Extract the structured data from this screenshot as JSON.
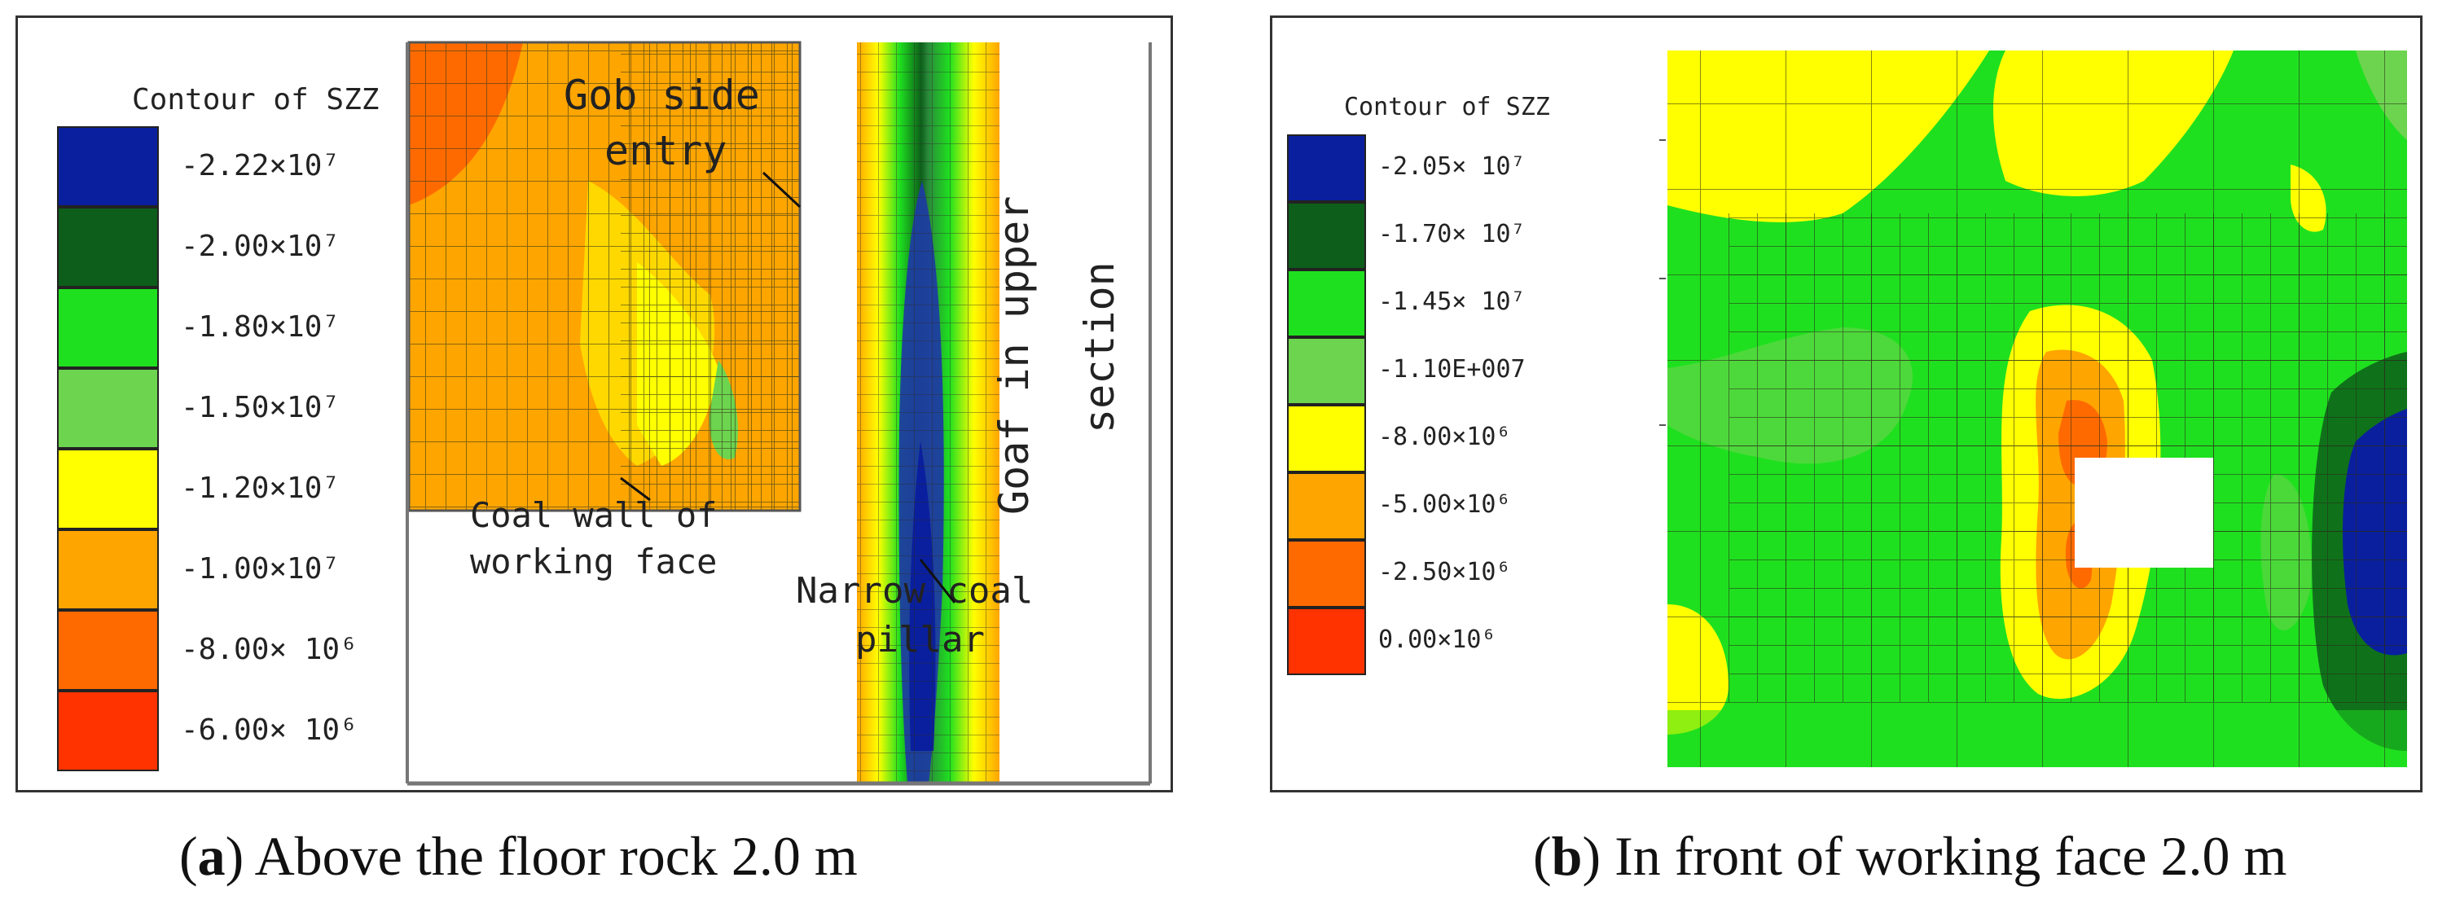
{
  "panel_a": {
    "legend_title": "Contour of SZZ",
    "legend_colors": [
      "#0a1f9e",
      "#0d5e1a",
      "#1fe01f",
      "#6dd44f",
      "#ffff00",
      "#ffa500",
      "#ff6a00",
      "#ff3300"
    ],
    "legend_labels": [
      "-2.22×10⁷",
      "-2.00×10⁷",
      "-1.80×10⁷",
      "-1.50×10⁷",
      "-1.20×10⁷",
      "-1.00×10⁷",
      "-8.00× 10⁶",
      "-6.00× 10⁶"
    ],
    "ann_gob": "Gob side\nentry",
    "ann_goaf": "Goaf in upper\nsection",
    "ann_coal_wall": "Coal wall of\nworking face",
    "ann_pillar": "Narrow coal\npillar"
  },
  "panel_b": {
    "legend_title": "Contour of SZZ",
    "legend_colors": [
      "#0a1f9e",
      "#0d5e1a",
      "#1fe01f",
      "#6dd44f",
      "#ffff00",
      "#ffa500",
      "#ff6a00",
      "#ff3300"
    ],
    "legend_labels": [
      "-2.05× 10⁷",
      "-1.70× 10⁷",
      "-1.45× 10⁷",
      "-1.10E+007",
      "-8.00×10⁶",
      "-5.00×10⁶",
      "-2.50×10⁶",
      "0.00×10⁶"
    ]
  },
  "captions": {
    "a_letter": "a",
    "a_text": "Above the floor rock 2.0 m",
    "b_letter": "b",
    "b_text": "In front of working face 2.0 m"
  }
}
